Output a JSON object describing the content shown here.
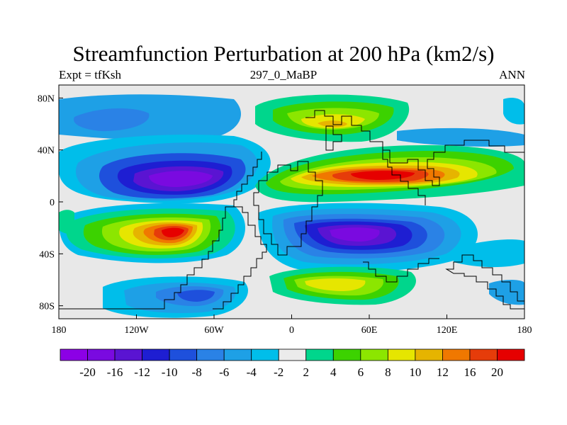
{
  "chart_data": {
    "type": "heatmap",
    "title": "Streamfunction Perturbation at 200 hPa (km2/s)",
    "left_label": "Expt = tfKsh",
    "center_label": "297_0_MaBP",
    "right_label": "ANN",
    "x_ticks": [
      {
        "value": -180,
        "label": "180"
      },
      {
        "value": -120,
        "label": "120W"
      },
      {
        "value": -60,
        "label": "60W"
      },
      {
        "value": 0,
        "label": "0"
      },
      {
        "value": 60,
        "label": "60E"
      },
      {
        "value": 120,
        "label": "120E"
      },
      {
        "value": 180,
        "label": "180"
      }
    ],
    "y_ticks": [
      {
        "value": 80,
        "label": "80N"
      },
      {
        "value": 40,
        "label": "40N"
      },
      {
        "value": 0,
        "label": "0"
      },
      {
        "value": -40,
        "label": "40S"
      },
      {
        "value": -80,
        "label": "80S"
      }
    ],
    "xlim": [
      -180,
      180
    ],
    "ylim": [
      -90,
      90
    ],
    "contour_levels": [
      -20,
      -16,
      -12,
      -10,
      -8,
      -6,
      -4,
      -2,
      2,
      4,
      6,
      8,
      10,
      12,
      16,
      20
    ],
    "colorbar_colors": [
      "#8c00e6",
      "#7a0ae0",
      "#5a14d2",
      "#1e1ed2",
      "#1e50dc",
      "#2a82e6",
      "#1ea0e6",
      "#00beea",
      "#ebebeb",
      "#00d68c",
      "#3cd200",
      "#8ce600",
      "#e6e600",
      "#e6b400",
      "#f07800",
      "#e63c0a",
      "#e60000"
    ],
    "features": [
      {
        "lon": -80,
        "lat": 20,
        "value": -20
      },
      {
        "lon": 40,
        "lat": -27,
        "value": -17
      },
      {
        "lon": -125,
        "lat": 62,
        "value": -9
      },
      {
        "lon": -110,
        "lat": -78,
        "value": -9
      },
      {
        "lon": 58,
        "lat": 20,
        "value": 20
      },
      {
        "lon": -75,
        "lat": -17,
        "value": 18
      },
      {
        "lon": 30,
        "lat": 62,
        "value": 9
      },
      {
        "lon": 10,
        "lat": -62,
        "value": 9
      }
    ]
  }
}
